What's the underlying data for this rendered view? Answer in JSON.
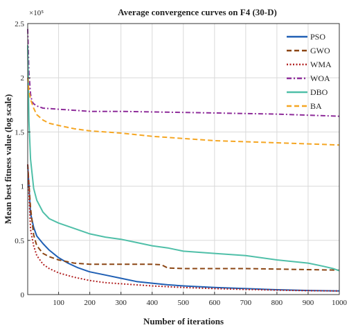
{
  "chart_data": {
    "type": "line",
    "title": "Average convergence curves on F4 (30-D)",
    "xlabel": "Number of iterations",
    "ylabel": "Mean best fitness value (log scale)",
    "y_exponent_label": "×10⁵",
    "xlim": [
      1,
      1000
    ],
    "ylim": [
      0,
      2.5
    ],
    "x_ticks": [
      100,
      200,
      300,
      400,
      500,
      600,
      700,
      800,
      900,
      1000
    ],
    "y_ticks": [
      0,
      0.5,
      1,
      1.5,
      2,
      2.5
    ],
    "y_tick_labels": [
      "0",
      "0.5",
      "1",
      "1.5",
      "2",
      "2.5"
    ],
    "grid": true,
    "legend_position": "top-right",
    "series": [
      {
        "name": "PSO",
        "color": "#1f5fb4",
        "dash": "solid",
        "x": [
          1,
          10,
          20,
          30,
          50,
          70,
          100,
          130,
          160,
          200,
          250,
          300,
          350,
          400,
          450,
          500,
          600,
          700,
          800,
          900,
          1000
        ],
        "y": [
          1.2,
          0.75,
          0.62,
          0.54,
          0.47,
          0.41,
          0.34,
          0.29,
          0.25,
          0.21,
          0.18,
          0.15,
          0.12,
          0.105,
          0.09,
          0.08,
          0.065,
          0.055,
          0.045,
          0.038,
          0.033
        ]
      },
      {
        "name": "GWO",
        "color": "#8b4513",
        "dash": "dashed",
        "x": [
          1,
          10,
          20,
          30,
          50,
          70,
          100,
          150,
          200,
          300,
          350,
          400,
          430,
          450,
          500,
          600,
          700,
          800,
          900,
          1000
        ],
        "y": [
          1.2,
          0.8,
          0.55,
          0.45,
          0.38,
          0.35,
          0.32,
          0.29,
          0.28,
          0.28,
          0.28,
          0.28,
          0.275,
          0.245,
          0.24,
          0.24,
          0.24,
          0.235,
          0.23,
          0.225
        ]
      },
      {
        "name": "WMA",
        "color": "#b22222",
        "dash": "dotted",
        "x": [
          1,
          10,
          20,
          30,
          50,
          70,
          100,
          150,
          200,
          250,
          300,
          400,
          500,
          600,
          700,
          800,
          900,
          1000
        ],
        "y": [
          1.2,
          0.6,
          0.45,
          0.36,
          0.28,
          0.24,
          0.2,
          0.16,
          0.13,
          0.11,
          0.1,
          0.08,
          0.065,
          0.055,
          0.047,
          0.041,
          0.036,
          0.033
        ]
      },
      {
        "name": "WOA",
        "color": "#8e2c9a",
        "dash": "dashdot",
        "x": [
          1,
          5,
          10,
          15,
          20,
          30,
          50,
          100,
          150,
          200,
          300,
          400,
          500,
          600,
          700,
          800,
          900,
          1000
        ],
        "y": [
          2.45,
          2.05,
          1.85,
          1.78,
          1.76,
          1.74,
          1.72,
          1.71,
          1.7,
          1.69,
          1.69,
          1.685,
          1.68,
          1.675,
          1.67,
          1.665,
          1.655,
          1.645
        ]
      },
      {
        "name": "DBO",
        "color": "#4fbfa8",
        "dash": "solid",
        "x": [
          1,
          5,
          10,
          20,
          30,
          50,
          70,
          100,
          150,
          200,
          250,
          300,
          350,
          400,
          450,
          500,
          600,
          700,
          800,
          900,
          950,
          980,
          1000
        ],
        "y": [
          2.3,
          1.6,
          1.25,
          0.98,
          0.87,
          0.76,
          0.7,
          0.66,
          0.61,
          0.56,
          0.53,
          0.51,
          0.48,
          0.45,
          0.43,
          0.4,
          0.38,
          0.36,
          0.32,
          0.29,
          0.26,
          0.24,
          0.22
        ]
      },
      {
        "name": "BA",
        "color": "#f5a623",
        "dash": "dashed",
        "x": [
          1,
          5,
          10,
          20,
          30,
          50,
          70,
          100,
          150,
          200,
          300,
          400,
          500,
          600,
          700,
          800,
          900,
          1000
        ],
        "y": [
          2.0,
          1.88,
          1.8,
          1.72,
          1.66,
          1.61,
          1.58,
          1.56,
          1.53,
          1.51,
          1.49,
          1.46,
          1.44,
          1.42,
          1.41,
          1.4,
          1.39,
          1.38
        ]
      }
    ]
  }
}
